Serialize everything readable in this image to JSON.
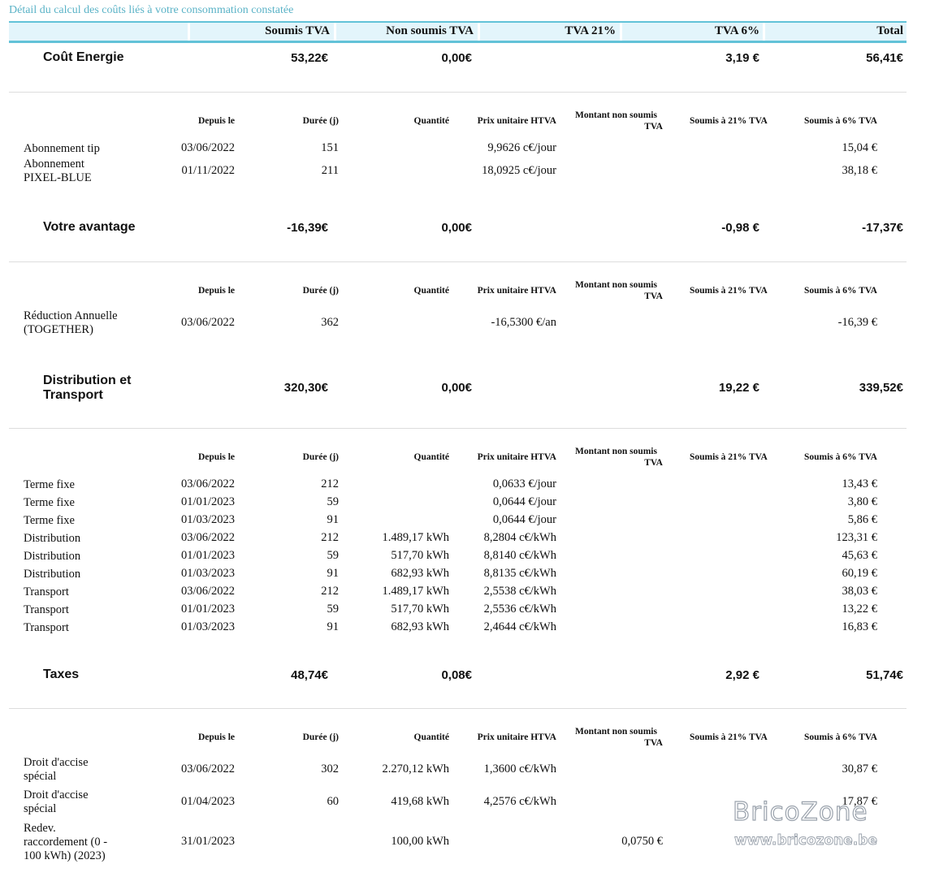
{
  "caption": "Détail du calcul des coûts liés à votre consommation constatée",
  "header": [
    "Soumis TVA",
    "Non soumis TVA",
    "TVA 21%",
    "TVA 6%",
    "Total"
  ],
  "subheader": {
    "since": "Depuis le",
    "duration": "Durée (j)",
    "quantity": "Quantité",
    "unit_price": "Prix unitaire HTVA",
    "non_subject_1": "Montant non soumis",
    "non_subject_2": "TVA",
    "vat21": "Soumis à 21% TVA",
    "vat6": "Soumis à 6% TVA"
  },
  "sections": [
    {
      "title": [
        "Coût Energie"
      ],
      "soumis": "53,22€",
      "non_soumis": "0,00€",
      "tva21": "",
      "tva6": "3,19 €",
      "total": "56,41€",
      "rows": [
        {
          "label": [
            "Abonnement tip"
          ],
          "since": "03/06/2022",
          "duration": "151",
          "quantity": "",
          "price": "9,9626 c€/jour",
          "non_subject": "",
          "vat21": "",
          "vat6": "15,04 €"
        },
        {
          "label": [
            "Abonnement",
            "PIXEL-BLUE"
          ],
          "since": "01/11/2022",
          "duration": "211",
          "quantity": "",
          "price": "18,0925 c€/jour",
          "non_subject": "",
          "vat21": "",
          "vat6": "38,18 €"
        }
      ]
    },
    {
      "title": [
        "Votre avantage"
      ],
      "soumis": "-16,39€",
      "non_soumis": "0,00€",
      "tva21": "",
      "tva6": "-0,98 €",
      "total": "-17,37€",
      "rows": [
        {
          "label": [
            "Réduction Annuelle",
            "(TOGETHER)"
          ],
          "since": "03/06/2022",
          "duration": "362",
          "quantity": "",
          "price": "-16,5300 €/an",
          "non_subject": "",
          "vat21": "",
          "vat6": "-16,39 €"
        }
      ]
    },
    {
      "title": [
        "Distribution et",
        "Transport"
      ],
      "soumis": "320,30€",
      "non_soumis": "0,00€",
      "tva21": "",
      "tva6": "19,22 €",
      "total": "339,52€",
      "rows": [
        {
          "label": [
            "Terme fixe"
          ],
          "since": "03/06/2022",
          "duration": "212",
          "quantity": "",
          "price": "0,0633 €/jour",
          "non_subject": "",
          "vat21": "",
          "vat6": "13,43 €"
        },
        {
          "label": [
            "Terme fixe"
          ],
          "since": "01/01/2023",
          "duration": "59",
          "quantity": "",
          "price": "0,0644 €/jour",
          "non_subject": "",
          "vat21": "",
          "vat6": "3,80 €"
        },
        {
          "label": [
            "Terme fixe"
          ],
          "since": "01/03/2023",
          "duration": "91",
          "quantity": "",
          "price": "0,0644 €/jour",
          "non_subject": "",
          "vat21": "",
          "vat6": "5,86 €"
        },
        {
          "label": [
            "Distribution"
          ],
          "since": "03/06/2022",
          "duration": "212",
          "quantity": "1.489,17 kWh",
          "price": "8,2804 c€/kWh",
          "non_subject": "",
          "vat21": "",
          "vat6": "123,31 €"
        },
        {
          "label": [
            "Distribution"
          ],
          "since": "01/01/2023",
          "duration": "59",
          "quantity": "517,70 kWh",
          "price": "8,8140 c€/kWh",
          "non_subject": "",
          "vat21": "",
          "vat6": "45,63 €"
        },
        {
          "label": [
            "Distribution"
          ],
          "since": "01/03/2023",
          "duration": "91",
          "quantity": "682,93 kWh",
          "price": "8,8135 c€/kWh",
          "non_subject": "",
          "vat21": "",
          "vat6": "60,19 €"
        },
        {
          "label": [
            "Transport"
          ],
          "since": "03/06/2022",
          "duration": "212",
          "quantity": "1.489,17 kWh",
          "price": "2,5538 c€/kWh",
          "non_subject": "",
          "vat21": "",
          "vat6": "38,03 €"
        },
        {
          "label": [
            "Transport"
          ],
          "since": "01/01/2023",
          "duration": "59",
          "quantity": "517,70 kWh",
          "price": "2,5536 c€/kWh",
          "non_subject": "",
          "vat21": "",
          "vat6": "13,22 €"
        },
        {
          "label": [
            "Transport"
          ],
          "since": "01/03/2023",
          "duration": "91",
          "quantity": "682,93 kWh",
          "price": "2,4644 c€/kWh",
          "non_subject": "",
          "vat21": "",
          "vat6": "16,83 €"
        }
      ]
    },
    {
      "title": [
        "Taxes"
      ],
      "soumis": "48,74€",
      "non_soumis": "0,08€",
      "tva21": "",
      "tva6": "2,92 €",
      "total": "51,74€",
      "rows": [
        {
          "label": [
            "Droit d'accise",
            "spécial"
          ],
          "since": "03/06/2022",
          "duration": "302",
          "quantity": "2.270,12 kWh",
          "price": "1,3600 c€/kWh",
          "non_subject": "",
          "vat21": "",
          "vat6": "30,87 €"
        },
        {
          "label": [
            "Droit d'accise",
            "spécial"
          ],
          "since": "01/04/2023",
          "duration": "60",
          "quantity": "419,68 kWh",
          "price": "4,2576 c€/kWh",
          "non_subject": "",
          "vat21": "",
          "vat6": "17,87 €"
        },
        {
          "label": [
            "Redev.",
            "raccordement (0 -",
            "100 kWh) (2023)"
          ],
          "since": "31/01/2023",
          "duration": "",
          "quantity": "100,00 kWh",
          "price": "",
          "non_subject": "0,0750 €",
          "vat21": "",
          "vat6": ""
        }
      ]
    }
  ],
  "watermark": {
    "brand": "BricoZone",
    "url": "www.bricozone.be"
  }
}
